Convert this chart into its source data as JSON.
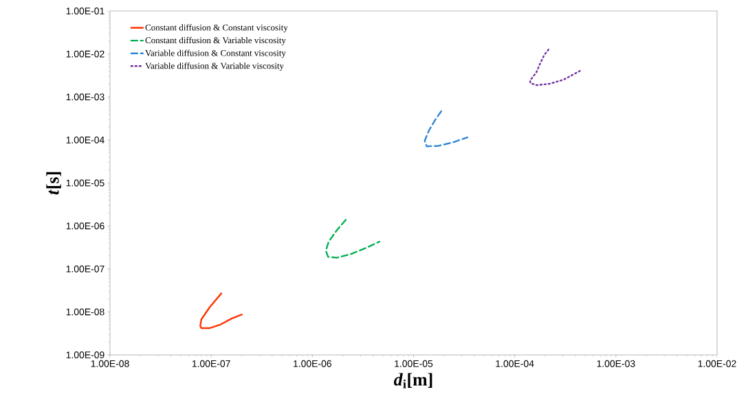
{
  "chart_data": {
    "type": "line",
    "xlabel": "*d*$_{i}$[m]",
    "ylabel": "*t*[s]",
    "log": "xy",
    "grid": false,
    "legend": "top left",
    "marker": "none",
    "xlim": [
      1e-08,
      0.01
    ],
    "ylim": [
      1e-09,
      0.1
    ],
    "xticks": [
      {
        "value": 1e-08,
        "label": "1.00E-08"
      },
      {
        "value": 1e-07,
        "label": "1.00E-07"
      },
      {
        "value": 1e-06,
        "label": "1.00E-06"
      },
      {
        "value": 1e-05,
        "label": "1.00E-05"
      },
      {
        "value": 0.0001,
        "label": "1.00E-04"
      },
      {
        "value": 0.001,
        "label": "1.00E-03"
      },
      {
        "value": 0.01,
        "label": "1.00E-02"
      }
    ],
    "yticks": [
      {
        "value": 1e-09,
        "label": "1.00E-09"
      },
      {
        "value": 1e-08,
        "label": "1.00E-08"
      },
      {
        "value": 1e-07,
        "label": "1.00E-07"
      },
      {
        "value": 1e-06,
        "label": "1.00E-06"
      },
      {
        "value": 1e-05,
        "label": "1.00E-05"
      },
      {
        "value": 0.0001,
        "label": "1.00E-04"
      },
      {
        "value": 0.001,
        "label": "1.00E-03"
      },
      {
        "value": 0.01,
        "label": "1.00E-02"
      },
      {
        "value": 0.1,
        "label": "1.00E-01"
      }
    ],
    "series": [
      {
        "name": "Constant diffusion & Constant viscosity",
        "color": "#ff3300",
        "line_style": "solid",
        "x": [
          1.26e-07,
          9.7e-08,
          8e-08,
          7.8e-08,
          8e-08,
          9.7e-08,
          1.22e-07,
          1.59e-07,
          2.01e-07
        ],
        "values": [
          2.7e-08,
          1.3e-08,
          6.7e-09,
          4.7e-09,
          4.2e-09,
          4.2e-09,
          5e-09,
          7e-09,
          8.7e-09
        ]
      },
      {
        "name": "Constant diffusion & Variable viscosity",
        "color": "#00b050",
        "line_style": "dashed",
        "x": [
          2.14e-06,
          1.75e-06,
          1.45e-06,
          1.36e-06,
          1.43e-06,
          1.75e-06,
          2.39e-06,
          3.27e-06,
          4.6e-06
        ],
        "values": [
          1.39e-06,
          8e-07,
          4.3e-07,
          2.66e-07,
          1.91e-07,
          1.83e-07,
          2.21e-07,
          2.97e-07,
          4.3e-07
        ]
      },
      {
        "name": "Variable diffusion & Constant viscosity",
        "color": "#2e86d4",
        "line_style": "dashed",
        "x": [
          1.88e-05,
          1.63e-05,
          1.42e-05,
          1.29e-05,
          1.35e-05,
          1.77e-05,
          2.49e-05,
          3.41e-05
        ],
        "values": [
          0.000466,
          0.000288,
          0.000166,
          9.6e-05,
          7.1e-05,
          7.3e-05,
          8.9e-05,
          0.000115
        ]
      },
      {
        "name": "Variable diffusion & Variable viscosity",
        "color": "#7030a0",
        "line_style": "dotted",
        "x": [
          0.000216,
          0.000196,
          0.000179,
          0.000163,
          0.000142,
          0.000143,
          0.000165,
          0.000222,
          0.000305,
          0.000444
        ],
        "values": [
          0.0127,
          0.0095,
          0.0061,
          0.00365,
          0.00244,
          0.0021,
          0.00188,
          0.00203,
          0.00253,
          0.00407
        ]
      }
    ]
  }
}
